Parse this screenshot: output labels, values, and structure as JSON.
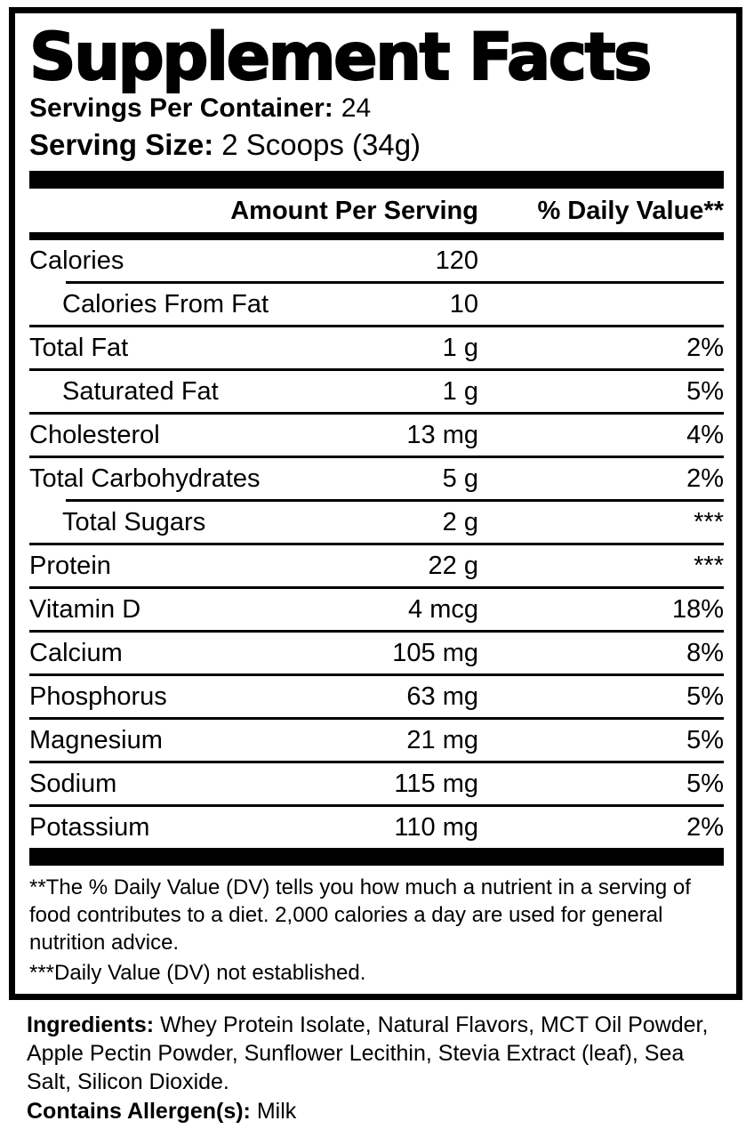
{
  "facts": {
    "title": "Supplement Facts",
    "servings_per_container": {
      "label": "Servings Per Container:",
      "value": "24"
    },
    "serving_size": {
      "label": "Serving Size:",
      "value": "2 Scoops (34g)"
    },
    "header": {
      "amount": "Amount Per Serving",
      "daily_value": "% Daily Value**"
    },
    "rows": [
      {
        "name": "Calories",
        "amount": "120",
        "dv": "",
        "indent": false,
        "sep_above": "none"
      },
      {
        "name": "Calories From Fat",
        "amount": "10",
        "dv": "",
        "indent": true,
        "sep_above": "indent"
      },
      {
        "name": "Total Fat",
        "amount": "1 g",
        "dv": "2%",
        "indent": false,
        "sep_above": "full"
      },
      {
        "name": "Saturated Fat",
        "amount": "1 g",
        "dv": "5%",
        "indent": true,
        "sep_above": "full"
      },
      {
        "name": "Cholesterol",
        "amount": "13 mg",
        "dv": "4%",
        "indent": false,
        "sep_above": "full"
      },
      {
        "name": "Total Carbohydrates",
        "amount": "5 g",
        "dv": "2%",
        "indent": false,
        "sep_above": "full"
      },
      {
        "name": "Total Sugars",
        "amount": "2 g",
        "dv": "***",
        "indent": true,
        "sep_above": "indent"
      },
      {
        "name": "Protein",
        "amount": "22 g",
        "dv": "***",
        "indent": false,
        "sep_above": "full"
      },
      {
        "name": "Vitamin D",
        "amount": "4 mcg",
        "dv": "18%",
        "indent": false,
        "sep_above": "full"
      },
      {
        "name": "Calcium",
        "amount": "105 mg",
        "dv": "8%",
        "indent": false,
        "sep_above": "full"
      },
      {
        "name": "Phosphorus",
        "amount": "63 mg",
        "dv": "5%",
        "indent": false,
        "sep_above": "full"
      },
      {
        "name": "Magnesium",
        "amount": "21 mg",
        "dv": "5%",
        "indent": false,
        "sep_above": "full"
      },
      {
        "name": "Sodium",
        "amount": "115 mg",
        "dv": "5%",
        "indent": false,
        "sep_above": "full"
      },
      {
        "name": "Potassium",
        "amount": "110 mg",
        "dv": "2%",
        "indent": false,
        "sep_above": "full"
      }
    ],
    "footnotes": {
      "daily_value": "**The % Daily Value (DV) tells you how much a nutrient in a serving of food contributes to a diet. 2,000 calories a day are used for general nutrition advice.",
      "not_established": "***Daily Value (DV) not established."
    }
  },
  "ingredients": {
    "label": "Ingredients:",
    "list": "Whey Protein Isolate, Natural Flavors, MCT Oil Powder, Apple Pectin Powder, Sunflower Lecithin, Stevia Extract (leaf), Sea Salt, Silicon Dioxide.",
    "allergen": {
      "label": "Contains Allergen(s):",
      "value": "Milk"
    }
  },
  "colors": {
    "text": "#000000",
    "background": "#ffffff",
    "bar": "#000000"
  }
}
